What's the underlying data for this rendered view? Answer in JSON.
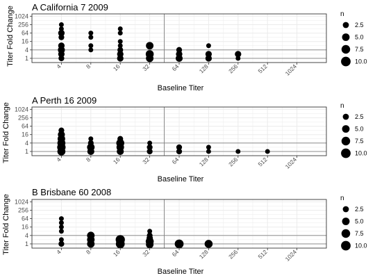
{
  "chart_data": [
    {
      "type": "scatter",
      "title": "A California 7 2009",
      "xlabel": "Baseline Titer",
      "ylabel": "Titer Fold Change",
      "x_ticks": [
        "4",
        "8",
        "16",
        "32",
        "64",
        "128",
        "256",
        "512",
        "1024"
      ],
      "y_ticks": [
        "1",
        "4",
        "16",
        "64",
        "256",
        "1024"
      ],
      "x_scale": "log2",
      "y_scale": "log2",
      "xlim": [
        2,
        2048
      ],
      "ylim": [
        0.5,
        1500
      ],
      "vline_x": 45,
      "hlines_y": [
        1,
        4
      ],
      "grid": true,
      "points": [
        {
          "x": 4,
          "y": 1,
          "n": 2
        },
        {
          "x": 4,
          "y": 2,
          "n": 3
        },
        {
          "x": 4,
          "y": 4,
          "n": 4
        },
        {
          "x": 4,
          "y": 8,
          "n": 3
        },
        {
          "x": 4,
          "y": 32,
          "n": 2
        },
        {
          "x": 4,
          "y": 64,
          "n": 3
        },
        {
          "x": 4,
          "y": 128,
          "n": 1
        },
        {
          "x": 4,
          "y": 256,
          "n": 1
        },
        {
          "x": 8,
          "y": 4,
          "n": 1
        },
        {
          "x": 8,
          "y": 8,
          "n": 1
        },
        {
          "x": 8,
          "y": 32,
          "n": 1
        },
        {
          "x": 8,
          "y": 64,
          "n": 1
        },
        {
          "x": 16,
          "y": 1,
          "n": 3
        },
        {
          "x": 16,
          "y": 2,
          "n": 3
        },
        {
          "x": 16,
          "y": 4,
          "n": 2
        },
        {
          "x": 16,
          "y": 8,
          "n": 1
        },
        {
          "x": 16,
          "y": 16,
          "n": 1
        },
        {
          "x": 16,
          "y": 64,
          "n": 1
        },
        {
          "x": 16,
          "y": 128,
          "n": 1
        },
        {
          "x": 32,
          "y": 1,
          "n": 5
        },
        {
          "x": 32,
          "y": 2,
          "n": 6
        },
        {
          "x": 32,
          "y": 8,
          "n": 5
        },
        {
          "x": 64,
          "y": 1,
          "n": 4
        },
        {
          "x": 64,
          "y": 2,
          "n": 3
        },
        {
          "x": 64,
          "y": 4,
          "n": 2
        },
        {
          "x": 128,
          "y": 1,
          "n": 3
        },
        {
          "x": 128,
          "y": 2,
          "n": 3
        },
        {
          "x": 128,
          "y": 8,
          "n": 1
        },
        {
          "x": 256,
          "y": 1,
          "n": 1
        },
        {
          "x": 256,
          "y": 2,
          "n": 3
        }
      ]
    },
    {
      "type": "scatter",
      "title": "A Perth 16 2009",
      "xlabel": "Baseline Titer",
      "ylabel": "Titer Fold Change",
      "x_ticks": [
        "4",
        "8",
        "16",
        "32",
        "64",
        "128",
        "256",
        "512",
        "1024"
      ],
      "y_ticks": [
        "1",
        "4",
        "16",
        "64",
        "256",
        "1024"
      ],
      "x_scale": "log2",
      "y_scale": "log2",
      "xlim": [
        2,
        2048
      ],
      "ylim": [
        0.5,
        1500
      ],
      "vline_x": 45,
      "hlines_y": [
        1,
        4
      ],
      "grid": true,
      "points": [
        {
          "x": 4,
          "y": 1,
          "n": 6
        },
        {
          "x": 4,
          "y": 2,
          "n": 7
        },
        {
          "x": 4,
          "y": 4,
          "n": 6
        },
        {
          "x": 4,
          "y": 8,
          "n": 5
        },
        {
          "x": 4,
          "y": 16,
          "n": 4
        },
        {
          "x": 4,
          "y": 32,
          "n": 2
        },
        {
          "x": 8,
          "y": 1,
          "n": 4
        },
        {
          "x": 8,
          "y": 2,
          "n": 5
        },
        {
          "x": 8,
          "y": 4,
          "n": 2
        },
        {
          "x": 8,
          "y": 8,
          "n": 1
        },
        {
          "x": 16,
          "y": 1,
          "n": 4
        },
        {
          "x": 16,
          "y": 2,
          "n": 5
        },
        {
          "x": 16,
          "y": 4,
          "n": 6
        },
        {
          "x": 16,
          "y": 8,
          "n": 2
        },
        {
          "x": 32,
          "y": 1,
          "n": 2
        },
        {
          "x": 32,
          "y": 2,
          "n": 2
        },
        {
          "x": 32,
          "y": 4,
          "n": 1
        },
        {
          "x": 64,
          "y": 1,
          "n": 2
        },
        {
          "x": 64,
          "y": 2,
          "n": 2
        },
        {
          "x": 128,
          "y": 1,
          "n": 1
        },
        {
          "x": 128,
          "y": 2,
          "n": 1
        },
        {
          "x": 256,
          "y": 1,
          "n": 1
        },
        {
          "x": 512,
          "y": 1,
          "n": 1
        }
      ]
    },
    {
      "type": "scatter",
      "title": "B Brisbane 60 2008",
      "xlabel": "Baseline Titer",
      "ylabel": "Titer Fold Change",
      "x_ticks": [
        "4",
        "8",
        "16",
        "32",
        "64",
        "128",
        "256",
        "512",
        "1024"
      ],
      "y_ticks": [
        "1",
        "4",
        "16",
        "64",
        "256",
        "1024"
      ],
      "x_scale": "log2",
      "y_scale": "log2",
      "xlim": [
        2,
        2048
      ],
      "ylim": [
        0.5,
        1500
      ],
      "vline_x": 45,
      "hlines_y": [
        1,
        4
      ],
      "grid": true,
      "points": [
        {
          "x": 4,
          "y": 1,
          "n": 2
        },
        {
          "x": 4,
          "y": 2,
          "n": 1
        },
        {
          "x": 4,
          "y": 8,
          "n": 1
        },
        {
          "x": 4,
          "y": 16,
          "n": 1
        },
        {
          "x": 4,
          "y": 32,
          "n": 1
        },
        {
          "x": 4,
          "y": 64,
          "n": 1
        },
        {
          "x": 8,
          "y": 1,
          "n": 5
        },
        {
          "x": 8,
          "y": 2,
          "n": 5
        },
        {
          "x": 8,
          "y": 4,
          "n": 5
        },
        {
          "x": 16,
          "y": 1,
          "n": 8
        },
        {
          "x": 16,
          "y": 2,
          "n": 9
        },
        {
          "x": 32,
          "y": 0.9,
          "n": 5
        },
        {
          "x": 32,
          "y": 1.5,
          "n": 6
        },
        {
          "x": 32,
          "y": 2.5,
          "n": 3
        },
        {
          "x": 32,
          "y": 4,
          "n": 2
        },
        {
          "x": 32,
          "y": 8,
          "n": 1
        },
        {
          "x": 64,
          "y": 1,
          "n": 8
        },
        {
          "x": 128,
          "y": 1,
          "n": 6
        }
      ]
    }
  ],
  "legend": {
    "title": "n",
    "entries": [
      {
        "label": "2.5",
        "n": 2.5
      },
      {
        "label": "5.0",
        "n": 5
      },
      {
        "label": "7.5",
        "n": 7.5
      },
      {
        "label": "10.0",
        "n": 10
      }
    ],
    "placement": "right"
  },
  "colors": {
    "points": "#000000",
    "grid": "#ebebeb",
    "reference_lines": "#7f7f7f",
    "panel_border": "#333333",
    "tick_text": "#4d4d4d"
  }
}
